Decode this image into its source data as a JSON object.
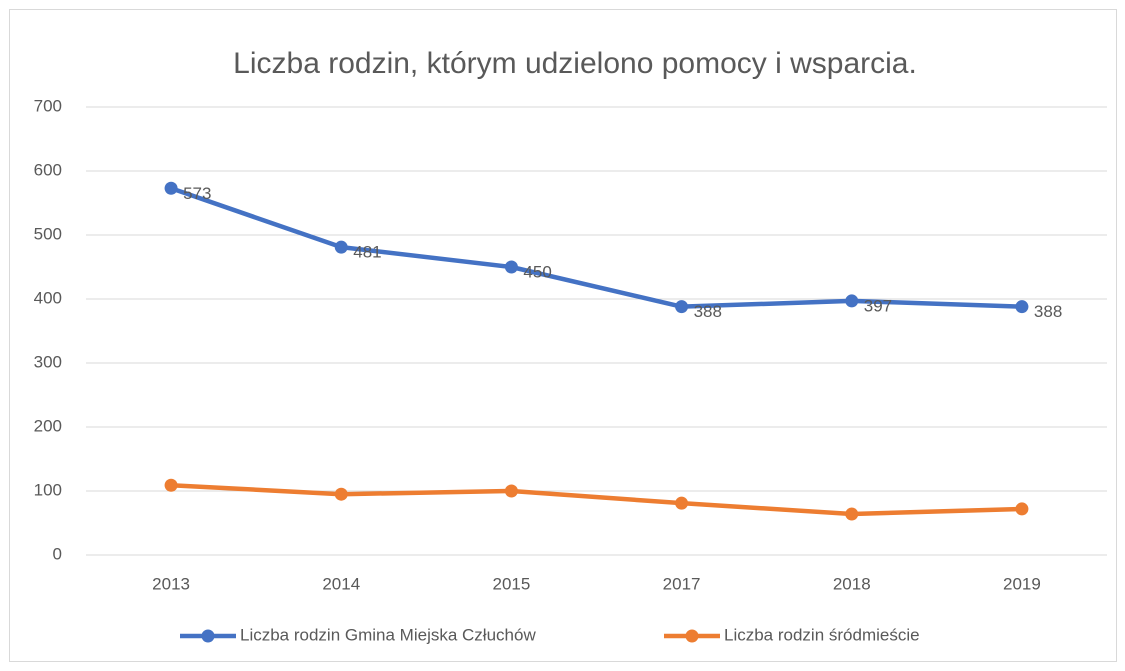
{
  "chart_data": {
    "type": "line",
    "title": "Liczba rodzin, którym udzielono pomocy i wsparcia.",
    "categories": [
      "2013",
      "2014",
      "2015",
      "2017",
      "2018",
      "2019"
    ],
    "series": [
      {
        "name": "Liczba rodzin Gmina Miejska Człuchów",
        "color": "#4472c4",
        "values": [
          573,
          481,
          450,
          388,
          397,
          388
        ],
        "data_labels": true
      },
      {
        "name": "Liczba rodzin śródmieście",
        "color": "#ed7d31",
        "values": [
          109,
          95,
          100,
          81,
          64,
          72
        ],
        "data_labels": false
      }
    ],
    "ylim": [
      0,
      700
    ],
    "yticks": [
      0,
      100,
      200,
      300,
      400,
      500,
      600,
      700
    ],
    "grid": true,
    "legend": "bottom"
  }
}
